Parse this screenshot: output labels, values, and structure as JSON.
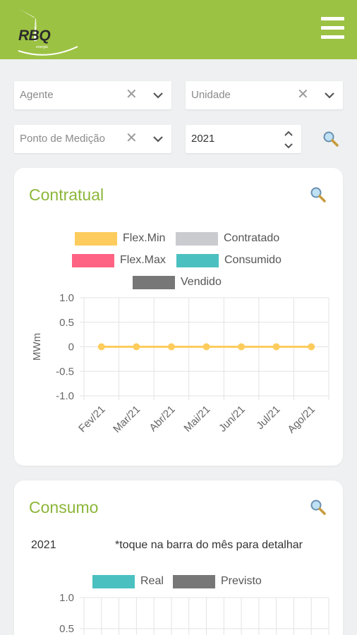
{
  "header": {
    "logo_text": "RBQ",
    "logo_sub": "energia",
    "menu_icon": "hamburger-menu-icon",
    "bg_color": "#9cc243"
  },
  "filters": {
    "agente": {
      "placeholder": "Agente"
    },
    "unidade": {
      "placeholder": "Unidade"
    },
    "ponto": {
      "placeholder": "Ponto de Medição"
    },
    "ano": {
      "value": "2021"
    }
  },
  "contratual": {
    "title": "Contratual",
    "legend": [
      {
        "label": "Flex.Min",
        "color": "#fdcc5c"
      },
      {
        "label": "Contratado",
        "color": "#c9cbcf"
      },
      {
        "label": "Flex.Max",
        "color": "#ff6384"
      },
      {
        "label": "Consumido",
        "color": "#4bc0c0"
      },
      {
        "label": "Vendido",
        "color": "#777777"
      }
    ]
  },
  "consumo": {
    "title": "Consumo",
    "year": "2021",
    "tip": "*toque na barra do mês para detalhar",
    "legend": [
      {
        "label": "Real",
        "color": "#4bc0c0"
      },
      {
        "label": "Previsto",
        "color": "#777777"
      }
    ]
  },
  "chart_data": [
    {
      "type": "line",
      "categories": [
        "Fev/21",
        "Mar/21",
        "Abr/21",
        "Mai/21",
        "Jun/21",
        "Jul/21",
        "Ago/21"
      ],
      "series": [
        {
          "name": "Flex.Min",
          "values": [
            0,
            0,
            0,
            0,
            0,
            0,
            0
          ],
          "color": "#fdcc5c"
        }
      ],
      "ylabel": "MWm",
      "ylim": [
        -1.0,
        1.0
      ],
      "yticks": [
        "1.0",
        "0.5",
        "0",
        "-0.5",
        "-1.0"
      ],
      "grid": true,
      "legend_position": "top"
    },
    {
      "type": "bar",
      "ylim": [
        0,
        1.0
      ],
      "yticks": [
        "1.0",
        "0.5"
      ],
      "grid": true,
      "legend_position": "top"
    }
  ]
}
